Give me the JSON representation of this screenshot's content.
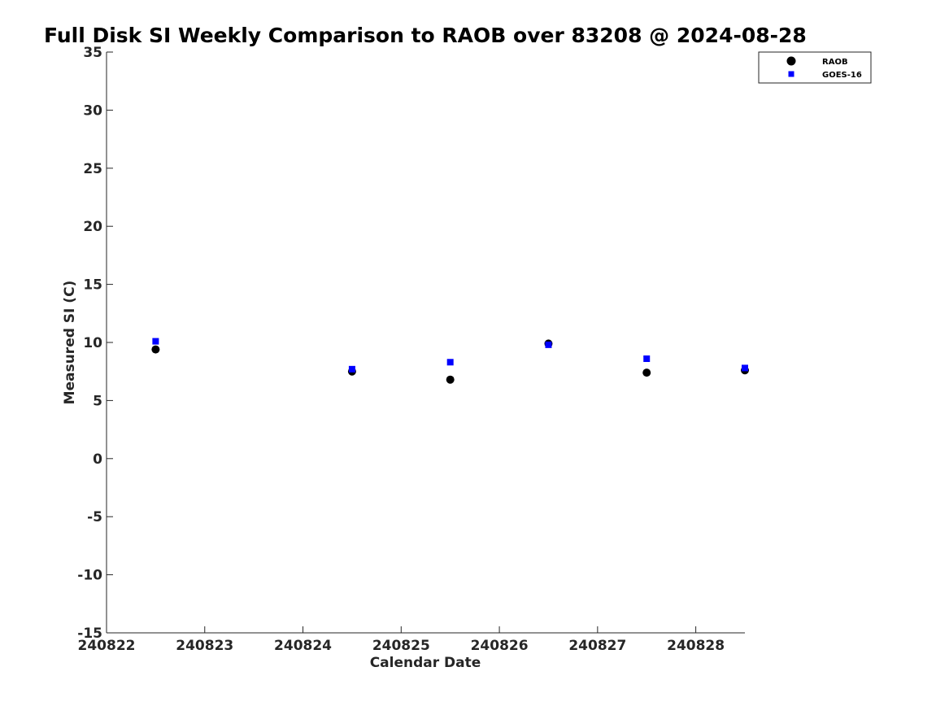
{
  "chart_data": {
    "type": "scatter",
    "title": "Full Disk SI Weekly Comparison to RAOB over 83208 @ 2024-08-28",
    "xlabel": "Calendar Date",
    "ylabel": "Measured SI (C)",
    "xlim": [
      "240822",
      "240828.5"
    ],
    "ylim": [
      -15,
      35
    ],
    "x_ticks": [
      "240822",
      "240823",
      "240824",
      "240825",
      "240826",
      "240827",
      "240828"
    ],
    "y_ticks": [
      35,
      30,
      25,
      20,
      15,
      10,
      5,
      0,
      -5,
      -10,
      -15
    ],
    "grid": false,
    "legend_position": "top-right",
    "x": [
      "240822.5",
      "240824.5",
      "240825.5",
      "240826.5",
      "240827.5",
      "240828.5"
    ],
    "series": [
      {
        "name": "RAOB",
        "marker": "circle",
        "color": "#000000",
        "values": [
          9.4,
          7.5,
          6.8,
          9.9,
          7.4,
          7.6
        ]
      },
      {
        "name": "GOES-16",
        "marker": "square",
        "color": "#0000ff",
        "values": [
          10.1,
          7.7,
          8.3,
          9.8,
          8.6,
          7.8
        ]
      }
    ]
  }
}
